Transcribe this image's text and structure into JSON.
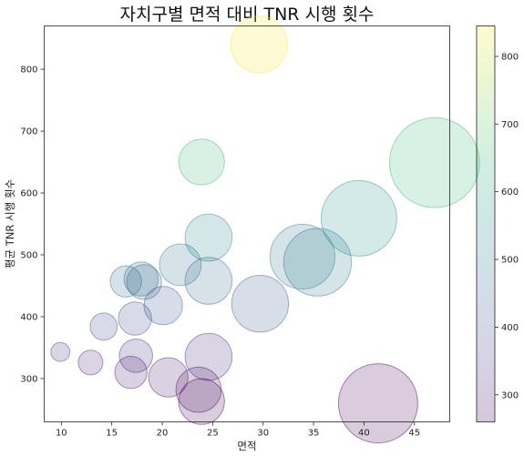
{
  "chart_data": {
    "type": "scatter",
    "title": "자치구별 면적 대비 TNR 시행 횟수",
    "xlabel": "면적",
    "ylabel": "평균 TNR 시행 횟수",
    "xlim": [
      8.3,
      48.5
    ],
    "ylim": [
      230,
      870
    ],
    "x_ticks": [
      10,
      15,
      20,
      25,
      30,
      35,
      40,
      45
    ],
    "y_ticks": [
      300,
      400,
      500,
      600,
      700,
      800
    ],
    "colorbar": {
      "range": [
        260,
        845
      ],
      "ticks": [
        300,
        400,
        500,
        600,
        700,
        800
      ],
      "colormap": "viridis",
      "alpha": 0.2
    },
    "size_encodes": "면적",
    "points": [
      {
        "x": 29.6,
        "y": 840
      },
      {
        "x": 47.0,
        "y": 649
      },
      {
        "x": 23.9,
        "y": 650
      },
      {
        "x": 39.5,
        "y": 559
      },
      {
        "x": 24.6,
        "y": 528
      },
      {
        "x": 33.9,
        "y": 497
      },
      {
        "x": 35.4,
        "y": 488
      },
      {
        "x": 21.8,
        "y": 484
      },
      {
        "x": 16.4,
        "y": 457
      },
      {
        "x": 17.9,
        "y": 461
      },
      {
        "x": 24.6,
        "y": 458
      },
      {
        "x": 18.2,
        "y": 456
      },
      {
        "x": 20.1,
        "y": 418
      },
      {
        "x": 29.7,
        "y": 421
      },
      {
        "x": 17.3,
        "y": 397
      },
      {
        "x": 14.2,
        "y": 384
      },
      {
        "x": 9.9,
        "y": 343
      },
      {
        "x": 12.9,
        "y": 326
      },
      {
        "x": 17.4,
        "y": 337
      },
      {
        "x": 24.6,
        "y": 335
      },
      {
        "x": 16.9,
        "y": 310
      },
      {
        "x": 20.6,
        "y": 302
      },
      {
        "x": 23.6,
        "y": 282
      },
      {
        "x": 23.9,
        "y": 263
      },
      {
        "x": 41.4,
        "y": 260
      }
    ]
  }
}
